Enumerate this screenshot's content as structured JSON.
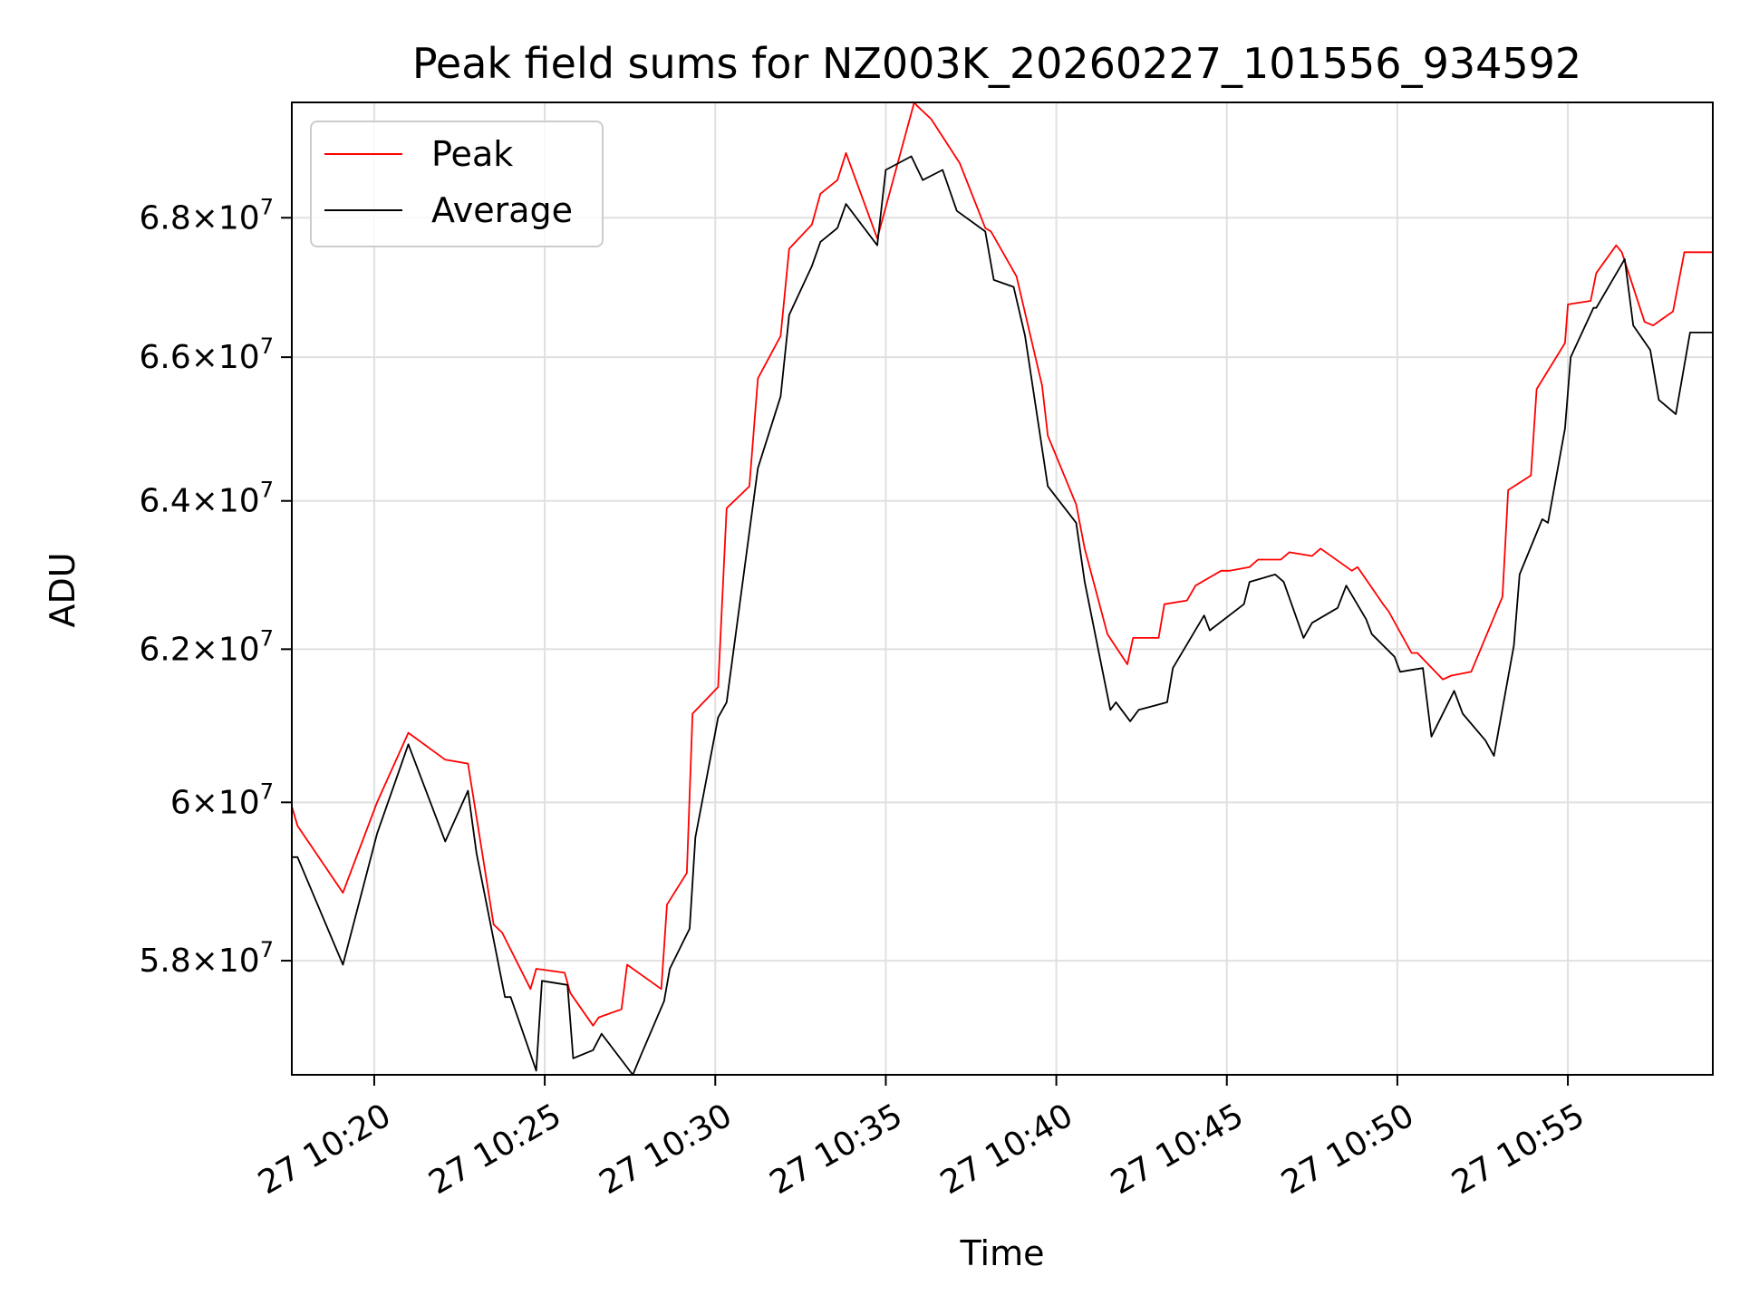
{
  "chart_data": {
    "type": "line",
    "title": "Peak field sums for NZ003K_20260227_101556_934592",
    "xlabel": "Time",
    "ylabel": "ADU",
    "y_scale": "log",
    "xlim": [
      "10:17:35",
      "10:59:15"
    ],
    "ylim": [
      56600000,
      69700000
    ],
    "x_ticks": [
      {
        "t": "10:20:00",
        "label": "27 10:20"
      },
      {
        "t": "10:25:00",
        "label": "27 10:25"
      },
      {
        "t": "10:30:00",
        "label": "27 10:30"
      },
      {
        "t": "10:35:00",
        "label": "27 10:35"
      },
      {
        "t": "10:40:00",
        "label": "27 10:40"
      },
      {
        "t": "10:45:00",
        "label": "27 10:45"
      },
      {
        "t": "10:50:00",
        "label": "27 10:50"
      },
      {
        "t": "10:55:00",
        "label": "27 10:55"
      }
    ],
    "y_ticks": [
      {
        "value": 58000000,
        "mantissa": "5.8",
        "exp": "7"
      },
      {
        "value": 60000000,
        "mantissa": "6",
        "exp": "7"
      },
      {
        "value": 62000000,
        "mantissa": "6.2",
        "exp": "7"
      },
      {
        "value": 64000000,
        "mantissa": "6.4",
        "exp": "7"
      },
      {
        "value": 66000000,
        "mantissa": "6.6",
        "exp": "7"
      },
      {
        "value": 68000000,
        "mantissa": "6.8",
        "exp": "7"
      }
    ],
    "grid": true,
    "legend_position": "top-left",
    "series": [
      {
        "name": "Peak",
        "color": "#ff0000",
        "points": [
          [
            "10:17:35",
            59950000
          ],
          [
            "10:17:45",
            59700000
          ],
          [
            "10:19:05",
            58850000
          ],
          [
            "10:20:05",
            60000000
          ],
          [
            "10:21:00",
            60900000
          ],
          [
            "10:22:05",
            60550000
          ],
          [
            "10:22:45",
            60500000
          ],
          [
            "10:23:30",
            58450000
          ],
          [
            "10:23:45",
            58350000
          ],
          [
            "10:24:35",
            57650000
          ],
          [
            "10:24:45",
            57900000
          ],
          [
            "10:25:35",
            57850000
          ],
          [
            "10:25:45",
            57600000
          ],
          [
            "10:26:25",
            57200000
          ],
          [
            "10:26:35",
            57300000
          ],
          [
            "10:27:15",
            57400000
          ],
          [
            "10:27:25",
            57950000
          ],
          [
            "10:28:25",
            57650000
          ],
          [
            "10:28:35",
            58700000
          ],
          [
            "10:29:10",
            59100000
          ],
          [
            "10:29:20",
            61150000
          ],
          [
            "10:30:05",
            61500000
          ],
          [
            "10:30:20",
            63900000
          ],
          [
            "10:31:00",
            64200000
          ],
          [
            "10:31:15",
            65700000
          ],
          [
            "10:31:55",
            66300000
          ],
          [
            "10:32:10",
            67550000
          ],
          [
            "10:32:50",
            67900000
          ],
          [
            "10:33:05",
            68350000
          ],
          [
            "10:33:35",
            68550000
          ],
          [
            "10:33:50",
            68950000
          ],
          [
            "10:34:45",
            67700000
          ],
          [
            "10:35:50",
            69700000
          ],
          [
            "10:35:55",
            69650000
          ],
          [
            "10:36:20",
            69450000
          ],
          [
            "10:37:10",
            68800000
          ],
          [
            "10:37:55",
            67850000
          ],
          [
            "10:38:05",
            67800000
          ],
          [
            "10:38:50",
            67150000
          ],
          [
            "10:39:35",
            65600000
          ],
          [
            "10:39:45",
            64900000
          ],
          [
            "10:40:35",
            63950000
          ],
          [
            "10:40:50",
            63350000
          ],
          [
            "10:41:30",
            62200000
          ],
          [
            "10:42:05",
            61800000
          ],
          [
            "10:42:15",
            62150000
          ],
          [
            "10:43:00",
            62150000
          ],
          [
            "10:43:10",
            62600000
          ],
          [
            "10:43:50",
            62650000
          ],
          [
            "10:44:05",
            62850000
          ],
          [
            "10:44:50",
            63050000
          ],
          [
            "10:45:05",
            63050000
          ],
          [
            "10:45:40",
            63100000
          ],
          [
            "10:45:55",
            63200000
          ],
          [
            "10:46:35",
            63200000
          ],
          [
            "10:46:50",
            63300000
          ],
          [
            "10:47:30",
            63250000
          ],
          [
            "10:47:45",
            63350000
          ],
          [
            "10:48:40",
            63050000
          ],
          [
            "10:48:50",
            63100000
          ],
          [
            "10:49:35",
            62600000
          ],
          [
            "10:49:45",
            62500000
          ],
          [
            "10:50:25",
            61950000
          ],
          [
            "10:50:35",
            61950000
          ],
          [
            "10:51:20",
            61600000
          ],
          [
            "10:51:35",
            61650000
          ],
          [
            "10:52:10",
            61700000
          ],
          [
            "10:53:05",
            62700000
          ],
          [
            "10:53:15",
            64150000
          ],
          [
            "10:53:55",
            64350000
          ],
          [
            "10:54:05",
            65550000
          ],
          [
            "10:54:55",
            66200000
          ],
          [
            "10:55:00",
            66750000
          ],
          [
            "10:55:40",
            66800000
          ],
          [
            "10:55:50",
            67200000
          ],
          [
            "10:56:25",
            67600000
          ],
          [
            "10:56:35",
            67500000
          ],
          [
            "10:57:15",
            66500000
          ],
          [
            "10:57:30",
            66450000
          ],
          [
            "10:58:05",
            66650000
          ],
          [
            "10:58:25",
            67500000
          ],
          [
            "10:59:15",
            67500000
          ]
        ]
      },
      {
        "name": "Average",
        "color": "#000000",
        "points": [
          [
            "10:17:35",
            59300000
          ],
          [
            "10:17:45",
            59300000
          ],
          [
            "10:19:05",
            57950000
          ],
          [
            "10:20:05",
            59600000
          ],
          [
            "10:21:00",
            60750000
          ],
          [
            "10:22:05",
            59500000
          ],
          [
            "10:22:45",
            60150000
          ],
          [
            "10:23:00",
            59350000
          ],
          [
            "10:23:50",
            57550000
          ],
          [
            "10:24:00",
            57550000
          ],
          [
            "10:24:45",
            56650000
          ],
          [
            "10:24:55",
            57750000
          ],
          [
            "10:25:40",
            57700000
          ],
          [
            "10:25:50",
            56800000
          ],
          [
            "10:26:25",
            56900000
          ],
          [
            "10:26:40",
            57100000
          ],
          [
            "10:27:35",
            56600000
          ],
          [
            "10:27:50",
            56850000
          ],
          [
            "10:28:30",
            57500000
          ],
          [
            "10:28:40",
            57900000
          ],
          [
            "10:29:15",
            58400000
          ],
          [
            "10:29:25",
            59550000
          ],
          [
            "10:30:05",
            61100000
          ],
          [
            "10:30:20",
            61300000
          ],
          [
            "10:31:15",
            64450000
          ],
          [
            "10:31:55",
            65450000
          ],
          [
            "10:32:10",
            66600000
          ],
          [
            "10:32:50",
            67300000
          ],
          [
            "10:33:05",
            67650000
          ],
          [
            "10:33:35",
            67850000
          ],
          [
            "10:33:50",
            68200000
          ],
          [
            "10:34:45",
            67600000
          ],
          [
            "10:35:00",
            68700000
          ],
          [
            "10:35:45",
            68900000
          ],
          [
            "10:36:05",
            68550000
          ],
          [
            "10:36:40",
            68700000
          ],
          [
            "10:37:05",
            68100000
          ],
          [
            "10:37:55",
            67800000
          ],
          [
            "10:38:10",
            67100000
          ],
          [
            "10:38:45",
            67000000
          ],
          [
            "10:39:05",
            66300000
          ],
          [
            "10:39:45",
            64200000
          ],
          [
            "10:40:35",
            63700000
          ],
          [
            "10:40:50",
            62900000
          ],
          [
            "10:41:35",
            61200000
          ],
          [
            "10:41:45",
            61300000
          ],
          [
            "10:42:10",
            61050000
          ],
          [
            "10:42:25",
            61200000
          ],
          [
            "10:43:15",
            61300000
          ],
          [
            "10:43:25",
            61750000
          ],
          [
            "10:44:20",
            62450000
          ],
          [
            "10:44:30",
            62250000
          ],
          [
            "10:45:30",
            62600000
          ],
          [
            "10:45:40",
            62900000
          ],
          [
            "10:46:25",
            63000000
          ],
          [
            "10:46:40",
            62900000
          ],
          [
            "10:47:15",
            62150000
          ],
          [
            "10:47:30",
            62350000
          ],
          [
            "10:48:15",
            62550000
          ],
          [
            "10:48:30",
            62850000
          ],
          [
            "10:49:05",
            62400000
          ],
          [
            "10:49:15",
            62200000
          ],
          [
            "10:49:55",
            61900000
          ],
          [
            "10:50:05",
            61700000
          ],
          [
            "10:50:45",
            61750000
          ],
          [
            "10:51:00",
            60850000
          ],
          [
            "10:51:40",
            61450000
          ],
          [
            "10:51:55",
            61150000
          ],
          [
            "10:52:35",
            60800000
          ],
          [
            "10:52:50",
            60600000
          ],
          [
            "10:53:25",
            62050000
          ],
          [
            "10:53:35",
            63000000
          ],
          [
            "10:54:15",
            63750000
          ],
          [
            "10:54:25",
            63700000
          ],
          [
            "10:54:55",
            65000000
          ],
          [
            "10:55:05",
            66000000
          ],
          [
            "10:55:45",
            66700000
          ],
          [
            "10:55:50",
            66700000
          ],
          [
            "10:56:40",
            67400000
          ],
          [
            "10:56:55",
            66450000
          ],
          [
            "10:57:25",
            66100000
          ],
          [
            "10:57:40",
            65400000
          ],
          [
            "10:58:10",
            65200000
          ],
          [
            "10:58:35",
            66350000
          ],
          [
            "10:59:15",
            66350000
          ]
        ]
      }
    ]
  }
}
